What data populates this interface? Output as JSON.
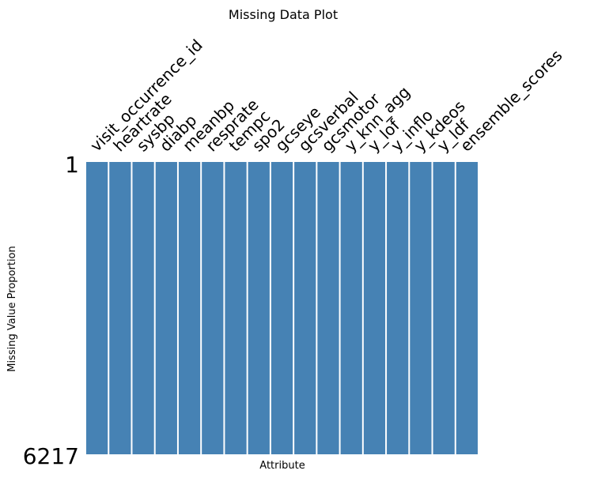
{
  "chart_data": {
    "type": "heatmap",
    "title": "Missing Data Plot",
    "xlabel": "Attribute",
    "ylabel": "Missing Value Proportion",
    "columns": [
      "visit_occurrence_id",
      "heartrate",
      "sysbp",
      "diabp",
      "meanbp",
      "resprate",
      "tempc",
      "spo2",
      "gcseye",
      "gcsverbal",
      "gcsmotor",
      "y_knn_agg",
      "y_lof",
      "y_inflo",
      "y_kdeos",
      "y_ldf",
      "ensemble_scores"
    ],
    "row_labels": [
      "1",
      "6217"
    ],
    "row_count": 6217,
    "missing_proportion": [
      0,
      0,
      0,
      0,
      0,
      0,
      0,
      0,
      0,
      0,
      0,
      0,
      0,
      0,
      0,
      0,
      0
    ],
    "present_color": "#4682b4",
    "missing_color": "#ffffff"
  }
}
